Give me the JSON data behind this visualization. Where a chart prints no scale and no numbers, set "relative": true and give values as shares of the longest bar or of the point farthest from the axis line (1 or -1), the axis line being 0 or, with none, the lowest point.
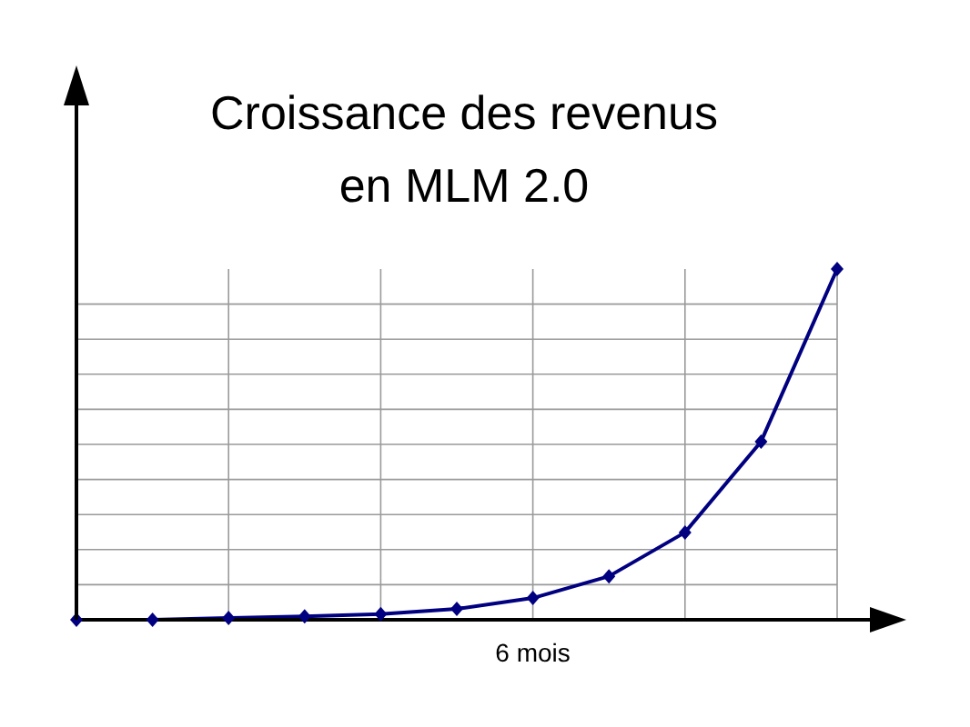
{
  "chart_data": {
    "type": "line",
    "title": "Croissance des revenus\nen MLM 2.0",
    "relative": true,
    "annotations": [
      "6 mois"
    ],
    "categories": [
      null,
      null,
      null,
      null,
      null,
      null,
      null,
      null,
      null,
      null,
      null
    ],
    "series": [
      {
        "color": "#000080",
        "values": [
          0,
          0,
          0.005,
          0.01,
          0.016,
          0.031,
          0.062,
          0.124,
          0.249,
          0.508,
          1
        ]
      }
    ],
    "marker": "diamond",
    "grid": true
  }
}
